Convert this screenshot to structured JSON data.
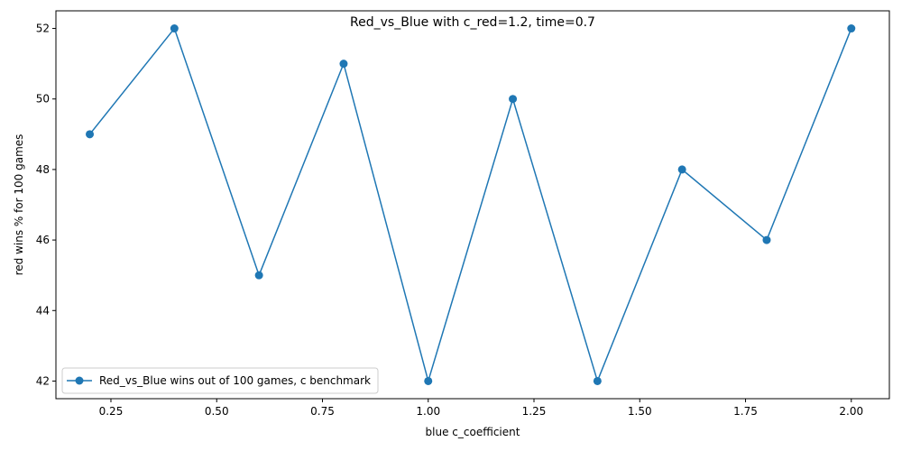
{
  "chart_data": {
    "type": "line",
    "title": "Red_vs_Blue with c_red=1.2, time=0.7",
    "xlabel": "blue c_coefficient",
    "ylabel": "red wins % for 100 games",
    "xlim": [
      0.12,
      2.09
    ],
    "ylim": [
      41.5,
      52.5
    ],
    "x_ticks": [
      0.25,
      0.5,
      0.75,
      1.0,
      1.25,
      1.5,
      1.75,
      2.0
    ],
    "x_tick_labels": [
      "0.25",
      "0.50",
      "0.75",
      "1.00",
      "1.25",
      "1.50",
      "1.75",
      "2.00"
    ],
    "y_ticks": [
      42,
      44,
      46,
      48,
      50,
      52
    ],
    "y_tick_labels": [
      "42",
      "44",
      "46",
      "48",
      "50",
      "52"
    ],
    "grid": false,
    "legend_position": "lower-left",
    "series": [
      {
        "name": "Red_vs_Blue wins out of 100 games, c benchmark",
        "color": "#1f77b4",
        "marker": "circle",
        "x": [
          0.2,
          0.4,
          0.6,
          0.8,
          1.0,
          1.2,
          1.4,
          1.6,
          1.8,
          2.0
        ],
        "y": [
          49,
          52,
          45,
          51,
          42,
          50,
          42,
          48,
          46,
          52
        ]
      }
    ]
  }
}
